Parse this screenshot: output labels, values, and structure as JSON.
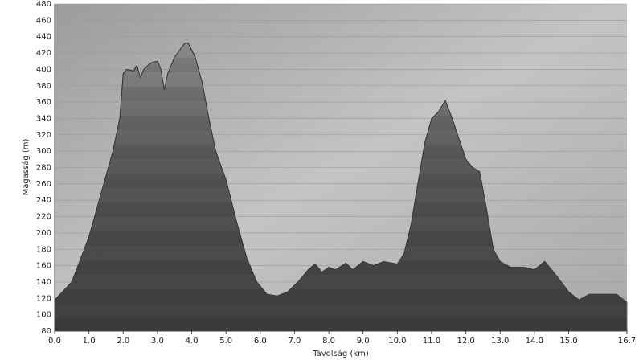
{
  "chart_data": {
    "type": "area",
    "xlabel": "Távolság  (km)",
    "ylabel": "Magasság (m)",
    "color": "#6c6c6c",
    "grid": true,
    "x": [
      0,
      0.5,
      1.0,
      1.3,
      1.7,
      1.9,
      2.0,
      2.1,
      2.3,
      2.4,
      2.5,
      2.6,
      2.8,
      3.0,
      3.1,
      3.2,
      3.3,
      3.5,
      3.8,
      3.9,
      4.1,
      4.3,
      4.5,
      4.7,
      5.0,
      5.3,
      5.6,
      5.9,
      6.2,
      6.5,
      6.8,
      7.1,
      7.4,
      7.6,
      7.8,
      8.0,
      8.2,
      8.5,
      8.7,
      9.0,
      9.3,
      9.6,
      10.0,
      10.2,
      10.4,
      10.6,
      10.8,
      11.0,
      11.2,
      11.4,
      11.6,
      11.8,
      12.0,
      12.2,
      12.4,
      12.6,
      12.8,
      13.0,
      13.3,
      13.7,
      14.0,
      14.3,
      14.6,
      15.0,
      15.3,
      15.6,
      16.0,
      16.4,
      16.7
    ],
    "values": [
      118,
      140,
      195,
      240,
      300,
      340,
      395,
      400,
      398,
      405,
      390,
      400,
      408,
      410,
      400,
      375,
      395,
      415,
      432,
      432,
      415,
      385,
      340,
      300,
      265,
      215,
      170,
      140,
      125,
      123,
      128,
      140,
      155,
      162,
      152,
      158,
      155,
      163,
      155,
      165,
      160,
      165,
      162,
      175,
      210,
      260,
      310,
      340,
      348,
      362,
      340,
      315,
      290,
      280,
      275,
      230,
      180,
      165,
      158,
      158,
      155,
      165,
      150,
      128,
      118,
      125,
      125,
      125,
      115
    ],
    "xlim": [
      0,
      16.7
    ],
    "xticks": [
      {
        "value": 0,
        "label": "0.0"
      },
      {
        "value": 1,
        "label": "1.0"
      },
      {
        "value": 2,
        "label": "2.0"
      },
      {
        "value": 3,
        "label": "3.0"
      },
      {
        "value": 4,
        "label": "4.0"
      },
      {
        "value": 5,
        "label": "5.0"
      },
      {
        "value": 6,
        "label": "6.0"
      },
      {
        "value": 7,
        "label": "7.0"
      },
      {
        "value": 8,
        "label": "8.0"
      },
      {
        "value": 9,
        "label": "9.0"
      },
      {
        "value": 10,
        "label": "10.0"
      },
      {
        "value": 11,
        "label": "11.0"
      },
      {
        "value": 12,
        "label": "12.0"
      },
      {
        "value": 13,
        "label": "13.0"
      },
      {
        "value": 14,
        "label": "14.0"
      },
      {
        "value": 15,
        "label": "15.0"
      },
      16.7
    ],
    "ylim": [
      80,
      480
    ],
    "yticks": [
      80,
      100,
      120,
      140,
      160,
      180,
      200,
      220,
      240,
      260,
      280,
      300,
      320,
      340,
      360,
      380,
      400,
      420,
      440,
      460,
      480
    ]
  }
}
